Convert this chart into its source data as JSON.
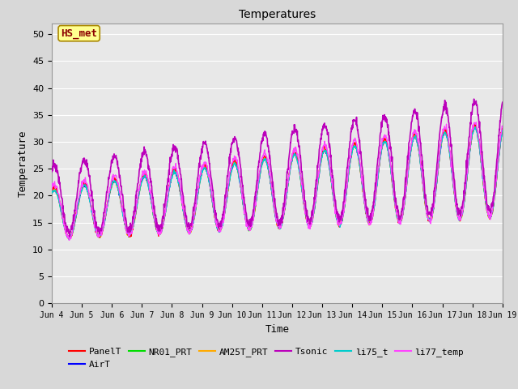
{
  "title": "Temperatures",
  "xlabel": "Time",
  "ylabel": "Temperature",
  "ylim": [
    0,
    52
  ],
  "yticks": [
    0,
    5,
    10,
    15,
    20,
    25,
    30,
    35,
    40,
    45,
    50
  ],
  "series": {
    "PanelT": {
      "color": "#ff0000",
      "lw": 1.0
    },
    "AirT": {
      "color": "#0000ff",
      "lw": 1.0
    },
    "NR01_PRT": {
      "color": "#00dd00",
      "lw": 1.0
    },
    "AM25T_PRT": {
      "color": "#ffaa00",
      "lw": 1.0
    },
    "Tsonic": {
      "color": "#bb00bb",
      "lw": 1.2
    },
    "li75_t": {
      "color": "#00cccc",
      "lw": 1.0
    },
    "li77_temp": {
      "color": "#ff44ff",
      "lw": 1.0
    }
  },
  "annotation": {
    "text": "HS_met",
    "fontsize": 9,
    "color": "#8B0000",
    "bg": "#ffff90",
    "border_color": "#aa8800"
  },
  "xtick_labels": [
    "Jun 4",
    "Jun 5",
    "Jun 6",
    "Jun 7",
    "Jun 8",
    "Jun 9",
    "Jun 10",
    "Jun 11",
    "Jun 12",
    "Jun 13",
    "Jun 14",
    "Jun 15",
    "Jun 16",
    "Jun 17",
    "Jun 18",
    "Jun 19"
  ],
  "n_days": 15,
  "points_per_day": 96
}
